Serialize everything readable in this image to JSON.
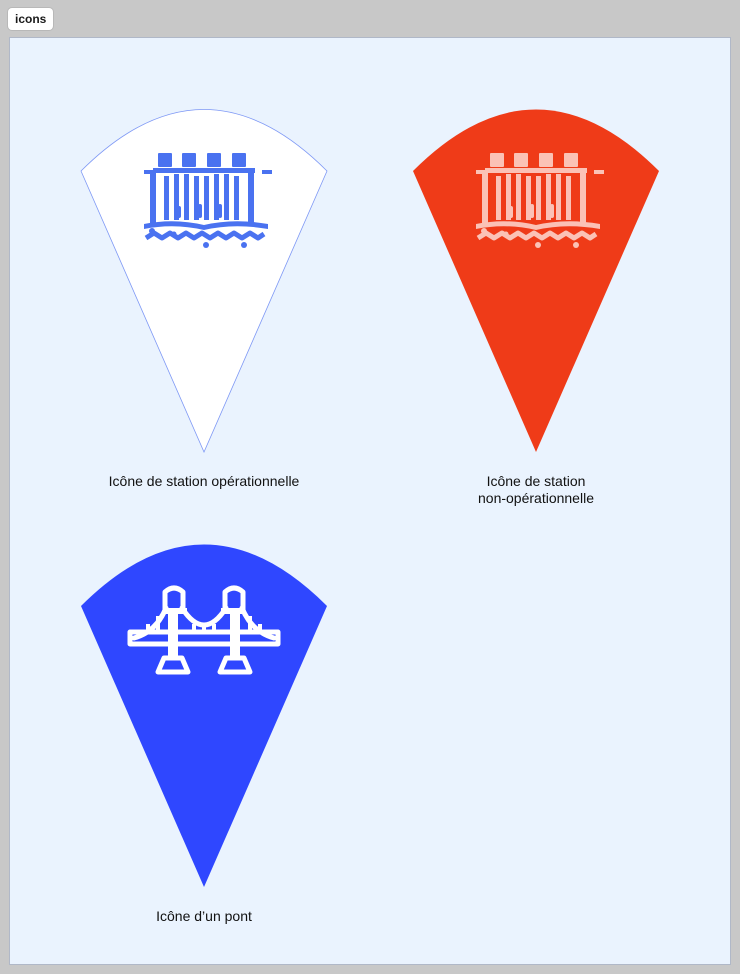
{
  "canvas": {
    "frame_label": "icons"
  },
  "icons": [
    {
      "caption": "Icône de station opérationnelle",
      "pin_fill": "#ffffff",
      "pin_outline": "#7e98f5",
      "glyph": "dam-icon",
      "glyph_color": "#4a72f0"
    },
    {
      "caption": "Icône de station\nnon-opérationnelle",
      "pin_fill": "#ef3b18",
      "glyph": "dam-icon",
      "glyph_color": "#fbc2b6"
    },
    {
      "caption": "Icône d’un pont",
      "pin_fill": "#2f47ff",
      "glyph": "bridge-icon",
      "glyph_color": "#ffffff"
    }
  ]
}
